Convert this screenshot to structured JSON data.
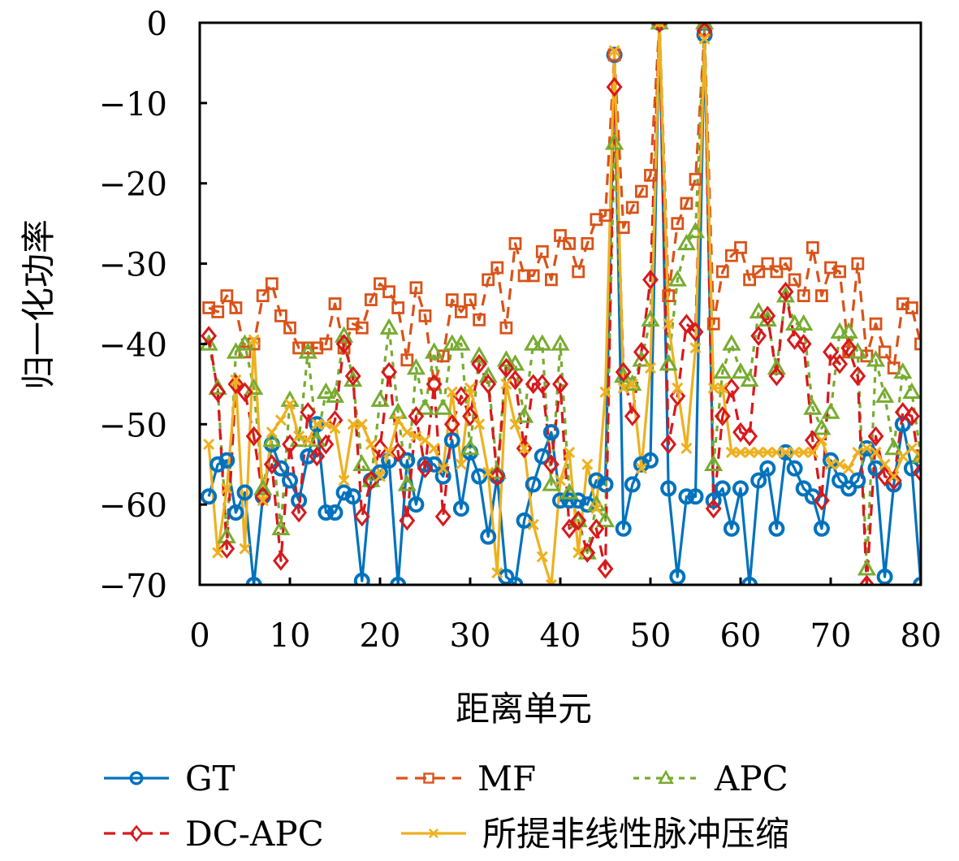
{
  "chart_data": {
    "type": "line",
    "title": "",
    "xlabel": "距离单元",
    "ylabel": "归一化功率",
    "xlim": [
      0,
      80
    ],
    "ylim": [
      -70,
      0
    ],
    "xticks": [
      0,
      10,
      20,
      30,
      40,
      50,
      60,
      70,
      80
    ],
    "yticks": [
      0,
      -10,
      -20,
      -30,
      -40,
      -50,
      -60,
      -70
    ],
    "xtick_labels": [
      "0",
      "10",
      "20",
      "30",
      "40",
      "50",
      "60",
      "70",
      "80"
    ],
    "ytick_labels": [
      "0",
      "−10",
      "−20",
      "−30",
      "−40",
      "−50",
      "−60",
      "−70"
    ],
    "grid": false,
    "legend_position": "bottom",
    "x": [
      1,
      2,
      3,
      4,
      5,
      6,
      7,
      8,
      9,
      10,
      11,
      12,
      13,
      14,
      15,
      16,
      17,
      18,
      19,
      20,
      21,
      22,
      23,
      24,
      25,
      26,
      27,
      28,
      29,
      30,
      31,
      32,
      33,
      34,
      35,
      36,
      37,
      38,
      39,
      40,
      41,
      42,
      43,
      44,
      45,
      46,
      47,
      48,
      49,
      50,
      51,
      52,
      53,
      54,
      55,
      56,
      57,
      58,
      59,
      60,
      61,
      62,
      63,
      64,
      65,
      66,
      67,
      68,
      69,
      70,
      71,
      72,
      73,
      74,
      75,
      76,
      77,
      78,
      79,
      80
    ],
    "series": [
      {
        "name": "GT",
        "color": "#0072BD",
        "line": "solid",
        "marker": "circle",
        "values": [
          -59,
          -55,
          -54.5,
          -61,
          -58.5,
          -70,
          -59,
          -52.5,
          -55.5,
          -57,
          -59.5,
          -54,
          -50,
          -61,
          -61,
          -58.5,
          -59,
          -69.5,
          -57,
          -56,
          -54.5,
          -70,
          -54.5,
          -60,
          -55,
          -55,
          -56.5,
          -52,
          -60.5,
          -53.5,
          -56.5,
          -64,
          -56.5,
          -69,
          -70,
          -62,
          -57.5,
          -54,
          -51,
          -59.5,
          -59.5,
          -59.5,
          -60,
          -57,
          -57.5,
          -4,
          -63,
          -57.5,
          -55,
          -54.5,
          0,
          -58,
          -69,
          -59,
          -59,
          -1.5,
          -59.5,
          -58,
          -63,
          -58,
          -70,
          -57,
          -55.5,
          -63,
          -53.5,
          -55.5,
          -58,
          -59,
          -63,
          -54.5,
          -57,
          -58,
          -57,
          -53,
          -55.5,
          -69,
          -57.5,
          -50,
          -55.5,
          -70
        ]
      },
      {
        "name": "MF",
        "color": "#D95319",
        "line": "dashed",
        "marker": "square",
        "values": [
          -35.5,
          -36,
          -34,
          -35.5,
          -41,
          -40,
          -34,
          -32.5,
          -36.5,
          -38,
          -40.5,
          -40.5,
          -40.5,
          -40,
          -35,
          -40.5,
          -37.5,
          -38,
          -34.5,
          -32.5,
          -33.5,
          -35.5,
          -42,
          -33,
          -36.5,
          -45,
          -41.5,
          -34.5,
          -36,
          -34.5,
          -37,
          -32,
          -30.5,
          -38,
          -27.5,
          -31.5,
          -31.5,
          -28.5,
          -32,
          -26.5,
          -27.5,
          -31,
          -27.5,
          -24.5,
          -24,
          -4,
          -25.5,
          -23,
          -21,
          -19,
          0,
          -34,
          -25,
          -22.5,
          -19.5,
          -1,
          -37.5,
          -31,
          -29,
          -28,
          -32,
          -31,
          -30,
          -31,
          -30,
          -32,
          -34,
          -28,
          -34,
          -30.5,
          -31,
          -41,
          -30,
          -41.5,
          -37.5,
          -41,
          -43,
          -35,
          -35.5,
          -40
        ]
      },
      {
        "name": "APC",
        "color": "#77AC30",
        "line": "dotted",
        "marker": "triangle",
        "values": [
          -40,
          -45.5,
          -64,
          -41,
          -40,
          -45.5,
          -58,
          -52,
          -63,
          -47,
          -52,
          -41,
          -52,
          -46,
          -46.5,
          -39,
          -44.5,
          -55,
          -57,
          -47,
          -38,
          -48.5,
          -57.5,
          -43,
          -48,
          -41,
          -48,
          -40,
          -40,
          -53,
          -41.5,
          -44,
          -56,
          -42,
          -42.5,
          -49,
          -40,
          -40,
          -57.5,
          -40,
          -58.5,
          -62,
          -66,
          -60,
          -62,
          -15,
          -44,
          -45,
          -42,
          -37,
          0,
          -42.5,
          -32,
          -27.5,
          -26,
          0,
          -55,
          -43.5,
          -40,
          -43.5,
          -44.5,
          -36,
          -37,
          -43,
          -34,
          -37.5,
          -37.5,
          -48,
          -50.5,
          -48.5,
          -38.5,
          -38.5,
          -41,
          -68,
          -42,
          -46.5,
          -53,
          -43.5,
          -46,
          -54
        ]
      },
      {
        "name": "DC-APC",
        "color": "#D7191C",
        "line": "dashed",
        "marker": "diamond",
        "values": [
          -39,
          -46,
          -65.5,
          -45,
          -46,
          -51.5,
          -59,
          -55,
          -67,
          -52.5,
          -61,
          -48.5,
          -54,
          -52.5,
          -49.5,
          -40,
          -44,
          -61.5,
          -57,
          -53,
          -43.5,
          -53.5,
          -62,
          -49,
          -55.5,
          -45,
          -61.5,
          -50,
          -46.5,
          -49,
          -42.5,
          -45,
          -56.5,
          -43,
          -44.5,
          -53,
          -45,
          -45,
          -55,
          -45,
          -63,
          -62,
          -66,
          -63,
          -68,
          -8,
          -43.5,
          -49,
          -41,
          -32,
          0,
          -52.5,
          -46.5,
          -37.5,
          -38.5,
          -1,
          -60.5,
          -49,
          -45.5,
          -51,
          -51.5,
          -39,
          -36.5,
          -44,
          -33.5,
          -39.5,
          -40,
          -52,
          -59.5,
          -41,
          -42.5,
          -40.5,
          -44,
          -70,
          -51.5,
          -56.5,
          -57,
          -48.5,
          -49,
          -56
        ]
      },
      {
        "name": "所提非线性脉冲压缩",
        "color": "#EDB120",
        "line": "solid",
        "marker": "x",
        "values": [
          -52.5,
          -66,
          -58,
          -44.5,
          -65.5,
          -39.5,
          -59.5,
          -51,
          -49.5,
          -47.5,
          -51.5,
          -52,
          -50,
          -50,
          -50.5,
          -57,
          -50,
          -50,
          -52.5,
          -56.5,
          -53.5,
          -49.5,
          -51,
          -51.5,
          -52,
          -53,
          -55.5,
          -46,
          -55,
          -45.5,
          -50,
          -56,
          -68.5,
          -45,
          -50,
          -53,
          -62.5,
          -66.5,
          -70,
          -57,
          -53.5,
          -66,
          -55,
          -60.5,
          -46,
          -3.5,
          -45.5,
          -45,
          -55.5,
          -43,
          0,
          -37.5,
          -45.5,
          -53,
          -40.5,
          -2,
          -45.5,
          -45.5,
          -53.5,
          -53.5,
          -53.5,
          -53.5,
          -53.5,
          -53.5,
          -53.5,
          -53.5,
          -53.5,
          -53.5,
          -52,
          -55,
          -55,
          -55.5,
          -53.5,
          -53,
          -53.5,
          -55,
          -56.5,
          -54,
          -53,
          -54
        ]
      }
    ]
  }
}
